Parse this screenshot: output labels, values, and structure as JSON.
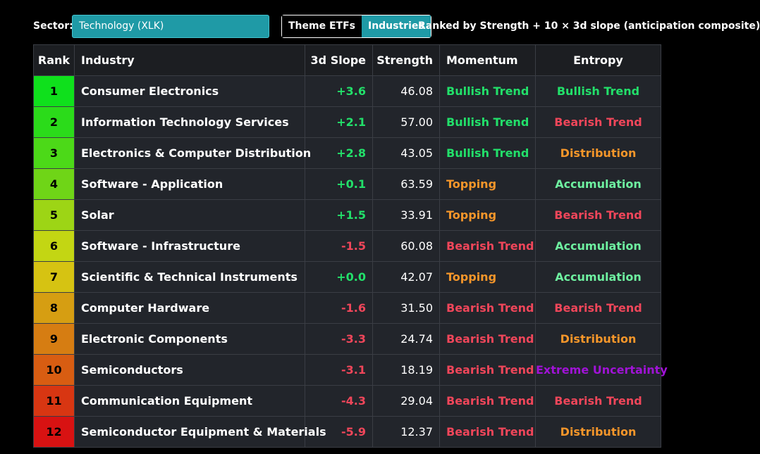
{
  "controls": {
    "sector_label": "Sector:",
    "sector_value": "Technology (XLK)",
    "toggle": [
      "Theme ETFs",
      "Industries"
    ],
    "toggle_active": 1,
    "rank_note": "Ranked by Strength + 10 × 3d slope (anticipation composite)"
  },
  "colors": {
    "accent": "#1f9aa6",
    "positive": "#22e06a",
    "negative": "#f0465a",
    "bullish": "#22e06a",
    "bearish": "#f0465a",
    "topping": "#f5962a",
    "distribution": "#f5962a",
    "accumulation": "#6ef0a0",
    "extreme_uncertainty": "#a013d6"
  },
  "table": {
    "headers": [
      "Rank",
      "Industry",
      "3d Slope",
      "Strength",
      "Momentum",
      "Entropy"
    ],
    "rows": [
      {
        "rank": "1",
        "industry": "Consumer Electronics",
        "slope": "+3.6",
        "strength": "46.08",
        "momentum": "Bullish Trend",
        "entropy": "Bullish Trend",
        "rank_color": "#0fe01c"
      },
      {
        "rank": "2",
        "industry": "Information Technology Services",
        "slope": "+2.1",
        "strength": "57.00",
        "momentum": "Bullish Trend",
        "entropy": "Bearish Trend",
        "rank_color": "#2bdb1a"
      },
      {
        "rank": "3",
        "industry": "Electronics & Computer Distribution",
        "slope": "+2.8",
        "strength": "43.05",
        "momentum": "Bullish Trend",
        "entropy": "Distribution",
        "rank_color": "#4cd918"
      },
      {
        "rank": "4",
        "industry": "Software - Application",
        "slope": "+0.1",
        "strength": "63.59",
        "momentum": "Topping",
        "entropy": "Accumulation",
        "rank_color": "#6fd517"
      },
      {
        "rank": "5",
        "industry": "Solar",
        "slope": "+1.5",
        "strength": "33.91",
        "momentum": "Topping",
        "entropy": "Bearish Trend",
        "rank_color": "#9dd515"
      },
      {
        "rank": "6",
        "industry": "Software - Infrastructure",
        "slope": "-1.5",
        "strength": "60.08",
        "momentum": "Bearish Trend",
        "entropy": "Accumulation",
        "rank_color": "#c3d613"
      },
      {
        "rank": "7",
        "industry": "Scientific & Technical Instruments",
        "slope": "+0.0",
        "strength": "42.07",
        "momentum": "Topping",
        "entropy": "Accumulation",
        "rank_color": "#d6c312"
      },
      {
        "rank": "8",
        "industry": "Computer Hardware",
        "slope": "-1.6",
        "strength": "31.50",
        "momentum": "Bearish Trend",
        "entropy": "Bearish Trend",
        "rank_color": "#d69e12"
      },
      {
        "rank": "9",
        "industry": "Electronic Components",
        "slope": "-3.3",
        "strength": "24.74",
        "momentum": "Bearish Trend",
        "entropy": "Distribution",
        "rank_color": "#d67d12"
      },
      {
        "rank": "10",
        "industry": "Semiconductors",
        "slope": "-3.1",
        "strength": "18.19",
        "momentum": "Bearish Trend",
        "entropy": "Extreme Uncertainty",
        "rank_color": "#d85d12"
      },
      {
        "rank": "11",
        "industry": "Communication Equipment",
        "slope": "-4.3",
        "strength": "29.04",
        "momentum": "Bearish Trend",
        "entropy": "Bearish Trend",
        "rank_color": "#d83612"
      },
      {
        "rank": "12",
        "industry": "Semiconductor Equipment & Materials",
        "slope": "-5.9",
        "strength": "12.37",
        "momentum": "Bearish Trend",
        "entropy": "Distribution",
        "rank_color": "#d81212"
      }
    ]
  }
}
